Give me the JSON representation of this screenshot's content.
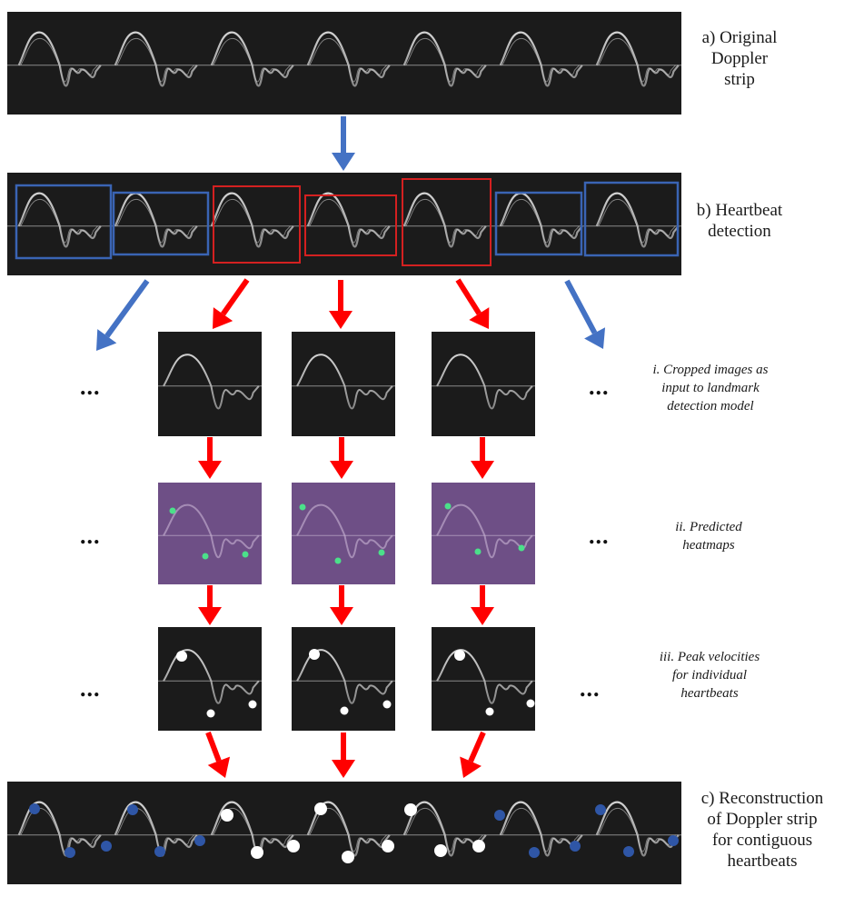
{
  "labels": {
    "original": [
      "a) Original",
      "Doppler",
      "strip"
    ],
    "detection": [
      "b) Heartbeat",
      "detection"
    ],
    "cropped": [
      "i. Cropped images as",
      "input to landmark",
      "detection model"
    ],
    "heatmaps": [
      "ii. Predicted",
      "heatmaps"
    ],
    "peaks": [
      "iii. Peak velocities",
      "for individual",
      "heartbeats"
    ],
    "reconstruction": [
      "c) Reconstruction",
      "of Doppler strip",
      "for contiguous",
      "heartbeats"
    ]
  },
  "ellipsis": "...",
  "colors": {
    "strip_background": "#1b1b1b",
    "baseline": "#8a8a8a",
    "waveform": "#d8d8d8",
    "blue_arrow": "#4472c4",
    "red_arrow": "#ff0000",
    "blue_box": "#3a64b4",
    "red_box": "#d42020",
    "heatmap_background": "#6e4f86",
    "heatmap_point": "#4be08a",
    "peak_marker_white": "#ffffff",
    "peak_marker_blue": "#2f56a6"
  },
  "detection_boxes": [
    {
      "color": "blue"
    },
    {
      "color": "blue"
    },
    {
      "color": "red"
    },
    {
      "color": "red"
    },
    {
      "color": "red"
    },
    {
      "color": "blue"
    },
    {
      "color": "blue"
    }
  ]
}
